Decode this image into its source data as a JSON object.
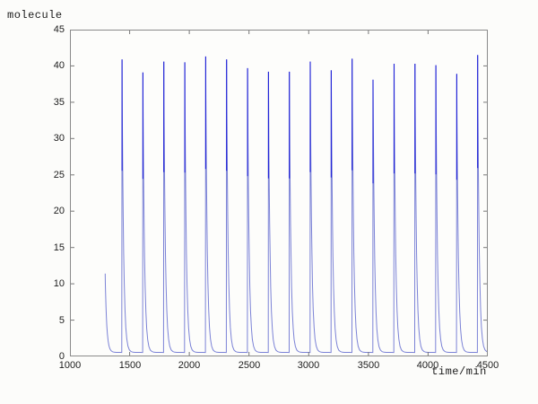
{
  "figure": {
    "ylabel_text": "molecule",
    "xlabel_text": "time/min"
  },
  "chart_data": {
    "type": "line",
    "title": "",
    "xlabel": "time/min",
    "ylabel": "molecule",
    "xlim": [
      1000,
      4500
    ],
    "ylim": [
      0,
      45
    ],
    "xticks": [
      1000,
      1500,
      2000,
      2500,
      3000,
      3500,
      4000,
      4500
    ],
    "yticks": [
      0,
      5,
      10,
      15,
      20,
      25,
      30,
      35,
      40,
      45
    ],
    "grid": false,
    "box": true,
    "legend_position": "none",
    "axis_color": "#8a8a8a",
    "tick_color": "#777777",
    "series": [
      {
        "name": "molecule",
        "color": "#7b82d6",
        "overlap_needle_color": "#1d1fd8",
        "line_width": 1,
        "baseline": 0.55,
        "decay_tau_min": 13,
        "initial_decay": {
          "t_start": 1295,
          "y_start": 11.4
        },
        "rise_width_min": 2,
        "spikes": [
          {
            "t": 1436,
            "peak": 40.9
          },
          {
            "t": 1611,
            "peak": 39.1
          },
          {
            "t": 1786,
            "peak": 40.6
          },
          {
            "t": 1962,
            "peak": 40.5
          },
          {
            "t": 2137,
            "peak": 41.3
          },
          {
            "t": 2312,
            "peak": 40.9
          },
          {
            "t": 2488,
            "peak": 39.7
          },
          {
            "t": 2663,
            "peak": 39.2
          },
          {
            "t": 2838,
            "peak": 39.2
          },
          {
            "t": 3013,
            "peak": 40.6
          },
          {
            "t": 3189,
            "peak": 39.4
          },
          {
            "t": 3364,
            "peak": 41.0
          },
          {
            "t": 3539,
            "peak": 38.1
          },
          {
            "t": 3715,
            "peak": 40.3
          },
          {
            "t": 3890,
            "peak": 40.3
          },
          {
            "t": 4065,
            "peak": 40.1
          },
          {
            "t": 4240,
            "peak": 38.9
          },
          {
            "t": 4415,
            "peak": 41.5
          }
        ]
      }
    ]
  }
}
